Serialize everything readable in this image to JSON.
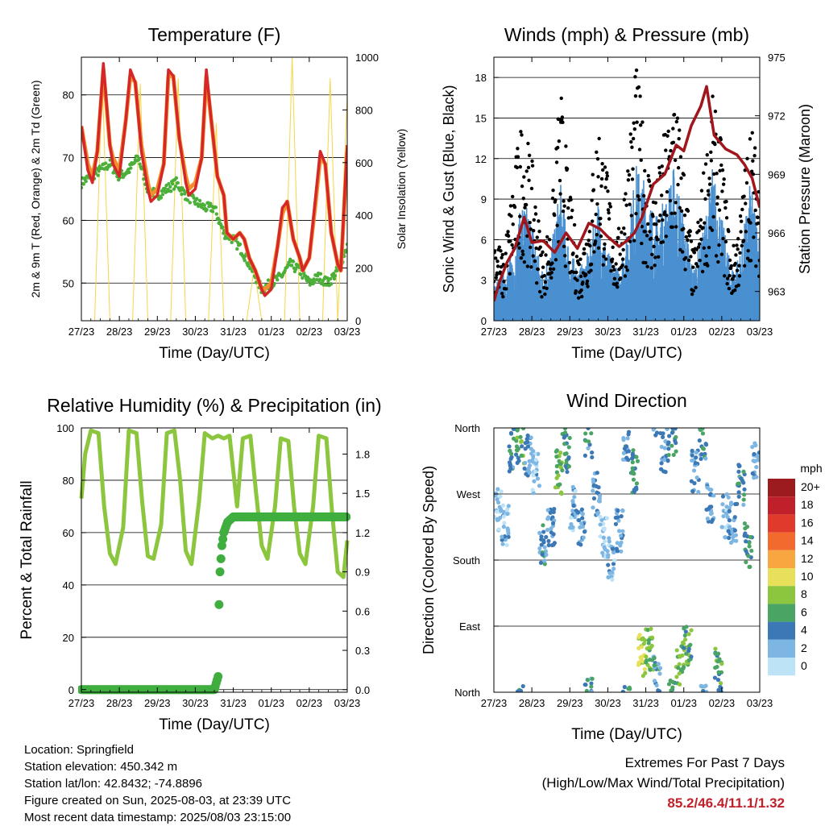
{
  "chart_data": [
    {
      "type": "line",
      "title": "Temperature (F)",
      "xlabel": "Time (Day/UTC)",
      "ylabel": "2m & 9m T (Red, Orange) & 2m Td (Green)",
      "y2label": "Solar Insolation (Yellow)",
      "x_ticks": [
        "27/23",
        "28/23",
        "29/23",
        "30/23",
        "31/23",
        "01/23",
        "02/23",
        "03/23"
      ],
      "xlim": [
        0,
        7
      ],
      "ylim": [
        44,
        86
      ],
      "y_ticks": [
        50,
        60,
        70,
        80
      ],
      "y2lim": [
        0,
        1000
      ],
      "y2_ticks": [
        0,
        200,
        400,
        600,
        800,
        1000
      ],
      "series": [
        {
          "name": "2m T",
          "color": "#d62728",
          "x": [
            0,
            0.17,
            0.29,
            0.42,
            0.58,
            0.75,
            0.83,
            1.0,
            1.17,
            1.29,
            1.42,
            1.58,
            1.75,
            1.83,
            2.0,
            2.17,
            2.29,
            2.42,
            2.58,
            2.75,
            2.83,
            3.0,
            3.17,
            3.29,
            3.42,
            3.58,
            3.75,
            3.83,
            4.0,
            4.17,
            4.29,
            4.42,
            4.58,
            4.75,
            4.83,
            5.0,
            5.17,
            5.29,
            5.42,
            5.58,
            5.75,
            5.83,
            6.0,
            6.17,
            6.29,
            6.42,
            6.58,
            6.75,
            6.83,
            7.0
          ],
          "y": [
            75,
            68,
            66,
            71,
            85,
            72,
            69,
            67,
            76,
            84,
            82,
            71,
            65,
            63,
            64,
            69,
            84,
            83,
            73,
            66,
            64,
            65,
            70,
            84,
            76,
            67,
            64,
            58,
            57,
            58,
            57,
            54,
            52,
            49,
            48,
            49,
            56,
            62,
            63,
            57,
            54,
            52,
            54,
            64,
            71,
            69,
            58,
            53,
            52,
            72
          ]
        },
        {
          "name": "9m T",
          "color": "#f28e2b",
          "x": [
            0,
            0.17,
            0.29,
            0.42,
            0.58,
            0.75,
            0.83,
            1.0,
            1.17,
            1.29,
            1.42,
            1.58,
            1.75,
            1.83,
            2.0,
            2.17,
            2.29,
            2.42,
            2.58,
            2.75,
            2.83,
            3.0,
            3.17,
            3.29,
            3.42,
            3.58,
            3.75,
            3.83,
            4.0,
            4.17,
            4.29,
            4.42,
            4.58,
            4.75,
            4.83,
            5.0,
            5.17,
            5.29,
            5.42,
            5.58,
            5.75,
            5.83,
            6.0,
            6.17,
            6.29,
            6.42,
            6.58,
            6.75,
            6.83,
            7.0
          ],
          "y": [
            75,
            69,
            67,
            71,
            84,
            72,
            70,
            68,
            76,
            83,
            82,
            72,
            66,
            64,
            65,
            69,
            83,
            83,
            73,
            67,
            65,
            66,
            70,
            83,
            76,
            67,
            64,
            58,
            57,
            58,
            57,
            54,
            52,
            49,
            49,
            50,
            56,
            61,
            63,
            57,
            54,
            52,
            54,
            63,
            70,
            69,
            58,
            53,
            52,
            71
          ]
        },
        {
          "name": "2m Td",
          "color": "#4caf3a",
          "x": [
            0,
            0.25,
            0.5,
            0.75,
            1.0,
            1.25,
            1.5,
            1.75,
            2.0,
            2.25,
            2.5,
            2.75,
            3.0,
            3.25,
            3.5,
            3.75,
            4.0,
            4.25,
            4.5,
            4.75,
            5.0,
            5.25,
            5.5,
            5.75,
            6.0,
            6.25,
            6.5,
            6.75,
            7.0
          ],
          "y": [
            66,
            67,
            68,
            69,
            67,
            68,
            70,
            65,
            64,
            65,
            66,
            64,
            63,
            62,
            62,
            58,
            57,
            55,
            52,
            49,
            50,
            51,
            53,
            52,
            50,
            51,
            50,
            52,
            56
          ]
        },
        {
          "name": "Solar Insolation",
          "color": "#f5d547",
          "axis": "y2",
          "x": [
            0,
            0.35,
            0.55,
            0.75,
            1.35,
            1.55,
            1.75,
            2.35,
            2.55,
            2.75,
            3.35,
            3.55,
            3.75,
            4.35,
            4.55,
            4.75,
            5.35,
            5.55,
            5.75,
            6.35,
            6.55,
            6.75,
            7.0
          ],
          "y": [
            0,
            0,
            930,
            0,
            0,
            900,
            0,
            0,
            920,
            0,
            0,
            750,
            0,
            0,
            200,
            0,
            0,
            1000,
            0,
            0,
            920,
            0,
            850
          ]
        }
      ]
    },
    {
      "type": "line",
      "title": "Winds (mph) & Pressure (mb)",
      "xlabel": "Time (Day/UTC)",
      "ylabel": "Sonic Wind & Gust (Blue, Black)",
      "y2label": "Station Pressure (Maroon)",
      "x_ticks": [
        "27/23",
        "28/23",
        "29/23",
        "30/23",
        "31/23",
        "01/23",
        "02/23",
        "03/23"
      ],
      "xlim": [
        0,
        7
      ],
      "ylim": [
        0,
        19.5
      ],
      "y_ticks": [
        0,
        3,
        6,
        9,
        12,
        15,
        18
      ],
      "y2lim": [
        961.5,
        975
      ],
      "y2_ticks": [
        963,
        966,
        969,
        972,
        975
      ],
      "series": [
        {
          "name": "Sonic Wind",
          "color": "#4a90d0",
          "x": [
            0,
            0.25,
            0.5,
            0.75,
            1.0,
            1.25,
            1.5,
            1.75,
            2.0,
            2.25,
            2.5,
            2.75,
            3.0,
            3.25,
            3.5,
            3.75,
            4.0,
            4.25,
            4.5,
            4.75,
            5.0,
            5.25,
            5.5,
            5.75,
            6.0,
            6.25,
            6.5,
            6.75,
            7.0
          ],
          "y": [
            2,
            3,
            4,
            7,
            6,
            3,
            4,
            8,
            4,
            3,
            4,
            7,
            4,
            3,
            5,
            9,
            8,
            6,
            7,
            9,
            6,
            3,
            5,
            9,
            6,
            3,
            4,
            8,
            5
          ]
        },
        {
          "name": "Gust",
          "color": "#000000",
          "x": [
            0,
            0.25,
            0.5,
            0.75,
            1.0,
            1.25,
            1.5,
            1.75,
            2.0,
            2.25,
            2.5,
            2.75,
            3.0,
            3.25,
            3.5,
            3.75,
            4.0,
            4.25,
            4.5,
            4.75,
            5.0,
            5.25,
            5.5,
            5.75,
            6.0,
            6.25,
            6.5,
            6.75,
            7.0
          ],
          "y": [
            6,
            4,
            9,
            13,
            10,
            5,
            6,
            15,
            8,
            4,
            7,
            13,
            9,
            5,
            10,
            16,
            11,
            8,
            12,
            15,
            10,
            4,
            9,
            14,
            11,
            4,
            7,
            13,
            9
          ]
        },
        {
          "name": "Station Pressure",
          "color": "#a0161c",
          "axis": "y2",
          "x": [
            0,
            0.15,
            0.35,
            0.55,
            0.8,
            1.0,
            1.3,
            1.6,
            1.9,
            2.2,
            2.5,
            2.8,
            3.0,
            3.3,
            3.5,
            3.7,
            3.9,
            4.2,
            4.5,
            4.8,
            5.0,
            5.2,
            5.45,
            5.6,
            5.8,
            6.1,
            6.4,
            6.6,
            6.8,
            7.0
          ],
          "y": [
            962.5,
            963.5,
            964.5,
            965.2,
            966.8,
            965.5,
            965.6,
            965.0,
            966.0,
            965.2,
            966.5,
            966.2,
            965.8,
            965.3,
            965.6,
            966.0,
            966.8,
            968.5,
            969.0,
            970.5,
            970.2,
            971.5,
            972.5,
            973.5,
            971.0,
            970.3,
            970.0,
            969.5,
            968.8,
            967.3
          ]
        }
      ]
    },
    {
      "type": "line",
      "title": "Relative Humidity (%) & Precipitation (in)",
      "xlabel": "Time (Day/UTC)",
      "ylabel": "Percent & Total Rainfall",
      "x_ticks": [
        "27/23",
        "28/23",
        "29/23",
        "30/23",
        "31/23",
        "01/23",
        "02/23",
        "03/23"
      ],
      "xlim": [
        0,
        7
      ],
      "ylim": [
        -1,
        100
      ],
      "y_ticks": [
        0,
        20,
        40,
        60,
        80,
        100
      ],
      "y2lim": [
        -0.02,
        2.0
      ],
      "y2_ticks": [
        "0.0",
        "0.3",
        "0.6",
        "0.9",
        "1.2",
        "1.5",
        "1.8"
      ],
      "series": [
        {
          "name": "Relative Humidity",
          "color": "#8cc63f",
          "x": [
            0,
            0.1,
            0.25,
            0.45,
            0.6,
            0.75,
            0.9,
            1.1,
            1.25,
            1.45,
            1.6,
            1.75,
            1.9,
            2.1,
            2.25,
            2.45,
            2.6,
            2.75,
            2.9,
            3.1,
            3.25,
            3.45,
            3.6,
            3.75,
            3.9,
            4.1,
            4.25,
            4.45,
            4.6,
            4.75,
            4.9,
            5.1,
            5.25,
            5.45,
            5.6,
            5.75,
            5.9,
            6.1,
            6.25,
            6.45,
            6.6,
            6.75,
            6.9,
            7.0
          ],
          "y": [
            73,
            90,
            99,
            98,
            70,
            52,
            48,
            62,
            99,
            98,
            72,
            51,
            50,
            63,
            98,
            99,
            80,
            53,
            48,
            72,
            98,
            96,
            97,
            96,
            97,
            70,
            96,
            97,
            75,
            55,
            50,
            70,
            96,
            95,
            70,
            52,
            48,
            70,
            97,
            96,
            68,
            45,
            43,
            57
          ]
        },
        {
          "name": "Total Precipitation",
          "color": "#3fae3f",
          "axis": "y2",
          "x": [
            0,
            3.5,
            3.6,
            3.62,
            3.65,
            3.7,
            3.75,
            3.85,
            4.0,
            4.3,
            7.0
          ],
          "y": [
            0,
            0,
            0.1,
            0.6,
            0.9,
            1.1,
            1.2,
            1.28,
            1.32,
            1.32,
            1.32
          ]
        }
      ]
    },
    {
      "type": "scatter",
      "title": "Wind Direction",
      "xlabel": "Time (Day/UTC)",
      "ylabel": "Direction (Colored By Speed)",
      "x_ticks": [
        "27/23",
        "28/23",
        "29/23",
        "30/23",
        "31/23",
        "01/23",
        "02/23",
        "03/23"
      ],
      "xlim": [
        0,
        7
      ],
      "ylim": [
        0,
        360
      ],
      "y_tick_labels": [
        "North",
        "East",
        "South",
        "West",
        "North"
      ],
      "legend": {
        "title": "mph",
        "position": "right",
        "labels": [
          "20+",
          "18",
          "16",
          "14",
          "12",
          "10",
          "8",
          "6",
          "4",
          "2",
          "0"
        ],
        "colors": [
          "#9b1b1e",
          "#c0202a",
          "#e03a2c",
          "#f26a2d",
          "#f8a640",
          "#e8e05a",
          "#8cc63f",
          "#4aa564",
          "#3b78b5",
          "#7db6e3",
          "#bde3f6"
        ]
      },
      "series": [
        {
          "name": "Direction",
          "x": [
            0.1,
            0.3,
            0.5,
            0.7,
            0.9,
            1.1,
            1.3,
            1.5,
            1.7,
            1.9,
            2.1,
            2.3,
            2.5,
            2.7,
            2.9,
            3.1,
            3.3,
            3.5,
            3.7,
            3.9,
            4.1,
            4.3,
            4.5,
            4.7,
            4.9,
            5.1,
            5.3,
            5.5,
            5.7,
            5.9,
            6.1,
            6.3,
            6.5,
            6.7,
            6.9
          ],
          "y": [
            250,
            230,
            330,
            340,
            320,
            300,
            200,
            220,
            300,
            330,
            250,
            230,
            350,
            270,
            210,
            180,
            220,
            340,
            300,
            50,
            60,
            20,
            330,
            350,
            40,
            60,
            300,
            340,
            260,
            30,
            240,
            230,
            280,
            200,
            320
          ],
          "speed": [
            1,
            2,
            4,
            6,
            3,
            2,
            4,
            3,
            7,
            5,
            2,
            3,
            4,
            3,
            1,
            2,
            3,
            4,
            5,
            9,
            7,
            4,
            3,
            5,
            7,
            6,
            3,
            4,
            3,
            6,
            2,
            3,
            4,
            5,
            3
          ]
        }
      ]
    }
  ],
  "info": {
    "location": "Location: Springfield",
    "elevation": "Station elevation: 450.342 m",
    "latlon": "Station lat/lon: 42.8432; -74.8896",
    "created": "Figure created on Sun, 2025-08-03, at 23:39 UTC",
    "recent": "Most recent data timestamp: 2025/08/03 23:15:00"
  },
  "extremes": {
    "line1": "Extremes For Past 7 Days",
    "line2": "(High/Low/Max Wind/Total Precipitation)",
    "values": "85.2/46.4/11.1/1.32"
  }
}
